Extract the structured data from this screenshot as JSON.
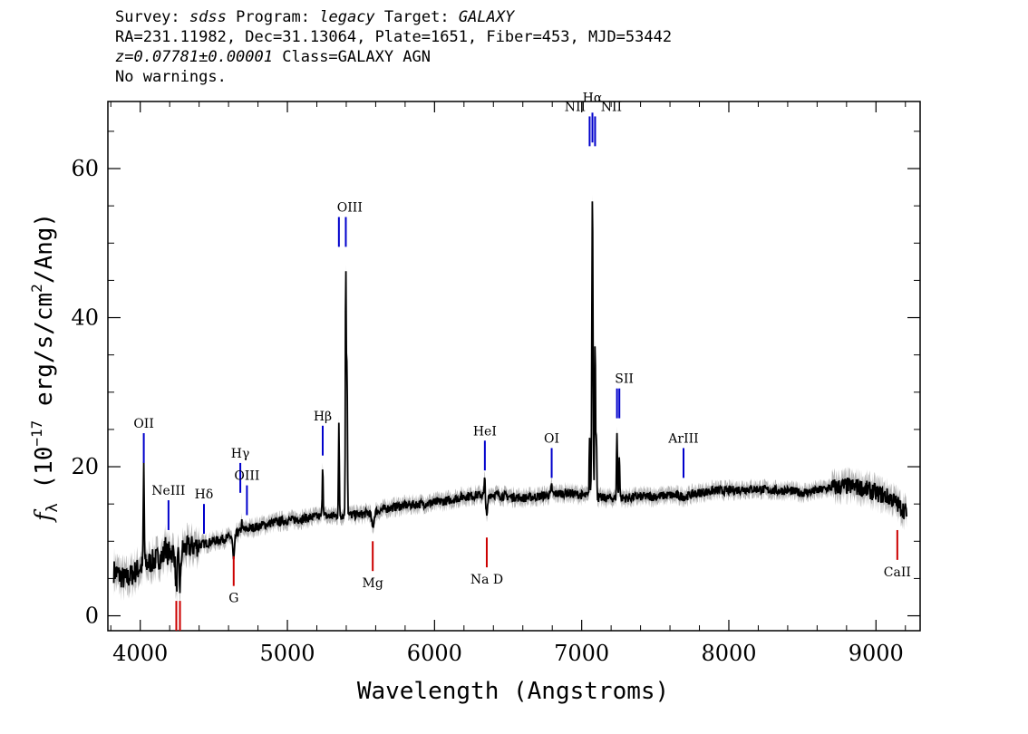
{
  "header": {
    "survey_key": "Survey:",
    "survey": "sdss",
    "program_key": "Program:",
    "program": "legacy",
    "target_key": "Target:",
    "target": "GALAXY",
    "coords": "RA=231.11982, Dec=31.13064, Plate=1651, Fiber=453, MJD=53442",
    "redshift": "z=0.07781±0.00001",
    "class": "Class=GALAXY AGN",
    "warnings": "No warnings."
  },
  "chart_data": {
    "type": "line",
    "title": "",
    "xlabel": "Wavelength (Angstroms)",
    "ylabel": "f_λ (10^-17 erg/s/cm^2/Ang)",
    "ylabel_parts": {
      "f": "f",
      "sub": "λ",
      "a": " (10",
      "exp1": "−17",
      "b": " erg/s/cm",
      "exp2": "2",
      "c": "/Ang)"
    },
    "xlim": [
      3780,
      9300
    ],
    "ylim": [
      -2,
      69
    ],
    "xticks": [
      4000,
      5000,
      6000,
      7000,
      8000,
      9000
    ],
    "xtick_labels": [
      "4000",
      "5000",
      "6000",
      "7000",
      "8000",
      "9000"
    ],
    "yticks": [
      0,
      20,
      40,
      60
    ],
    "ytick_labels": [
      "0",
      "20",
      "40",
      "60"
    ],
    "series": [
      {
        "name": "flux",
        "color": "#000000",
        "continuum": [
          [
            3820,
            6
          ],
          [
            3900,
            4.8
          ],
          [
            4000,
            6.5
          ],
          [
            4100,
            7.5
          ],
          [
            4200,
            8.5
          ],
          [
            4300,
            9
          ],
          [
            4400,
            9.5
          ],
          [
            4500,
            10
          ],
          [
            4600,
            10.5
          ],
          [
            4700,
            11.5
          ],
          [
            4800,
            12
          ],
          [
            4900,
            12.5
          ],
          [
            5000,
            12.8
          ],
          [
            5100,
            13
          ],
          [
            5200,
            13.3
          ],
          [
            5300,
            13.4
          ],
          [
            5400,
            13.5
          ],
          [
            5500,
            13.6
          ],
          [
            5600,
            14
          ],
          [
            5700,
            14.5
          ],
          [
            5800,
            14.8
          ],
          [
            5900,
            15
          ],
          [
            6000,
            15.2
          ],
          [
            6100,
            15.5
          ],
          [
            6200,
            16
          ],
          [
            6300,
            16.2
          ],
          [
            6400,
            16.3
          ],
          [
            6500,
            16
          ],
          [
            6600,
            15.8
          ],
          [
            6700,
            16
          ],
          [
            6800,
            16.3
          ],
          [
            6900,
            16.5
          ],
          [
            7000,
            16.2
          ],
          [
            7100,
            15.8
          ],
          [
            7200,
            15.8
          ],
          [
            7300,
            15.8
          ],
          [
            7400,
            16
          ],
          [
            7500,
            16
          ],
          [
            7600,
            16.2
          ],
          [
            7700,
            16
          ],
          [
            7800,
            16.5
          ],
          [
            7900,
            16.8
          ],
          [
            8000,
            16.8
          ],
          [
            8100,
            17
          ],
          [
            8200,
            17
          ],
          [
            8300,
            16.8
          ],
          [
            8400,
            16.8
          ],
          [
            8500,
            16.5
          ],
          [
            8600,
            16.8
          ],
          [
            8700,
            17.2
          ],
          [
            8800,
            17.4
          ],
          [
            8900,
            17.2
          ],
          [
            9000,
            16.5
          ],
          [
            9100,
            15.8
          ],
          [
            9200,
            14
          ]
        ],
        "features": [
          {
            "center": 4024,
            "amp": 13.5,
            "width": 3
          },
          {
            "center": 4170,
            "amp": 2.5,
            "width": 3
          },
          {
            "center": 4245,
            "amp": -5,
            "width": 6
          },
          {
            "center": 4270,
            "amp": -5,
            "width": 6
          },
          {
            "center": 4635,
            "amp": -3.5,
            "width": 6
          },
          {
            "center": 4690,
            "amp": 1.2,
            "width": 3
          },
          {
            "center": 5240,
            "amp": 7,
            "width": 3
          },
          {
            "center": 5350,
            "amp": 12,
            "width": 3
          },
          {
            "center": 5397,
            "amp": 33.5,
            "width": 3
          },
          {
            "center": 5405,
            "amp": 20,
            "width": 3
          },
          {
            "center": 5580,
            "amp": -2,
            "width": 8
          },
          {
            "center": 6342,
            "amp": 2.5,
            "width": 3
          },
          {
            "center": 6355,
            "amp": -3,
            "width": 6
          },
          {
            "center": 6796,
            "amp": 1.2,
            "width": 3
          },
          {
            "center": 7054,
            "amp": 8,
            "width": 3
          },
          {
            "center": 7073,
            "amp": 41,
            "width": 4
          },
          {
            "center": 7091,
            "amp": 22,
            "width": 3
          },
          {
            "center": 7100,
            "amp": 8,
            "width": 3
          },
          {
            "center": 7240,
            "amp": 9,
            "width": 3
          },
          {
            "center": 7256,
            "amp": 6,
            "width": 3
          }
        ]
      }
    ],
    "emission_lines": [
      {
        "label": "OII",
        "x": 4024,
        "y1": 20.5,
        "y2": 24.5
      },
      {
        "label": "NeIII",
        "x": 4192,
        "y1": 11.5,
        "y2": 15.5
      },
      {
        "label": "Hδ",
        "x": 4433,
        "y1": 11,
        "y2": 15
      },
      {
        "label": "Hγ",
        "x": 4680,
        "y1": 16.5,
        "y2": 20.5
      },
      {
        "label": "OIII",
        "x": 4725,
        "y1": 13.5,
        "y2": 17.5
      },
      {
        "label": "Hβ",
        "x": 5240,
        "y1": 21.5,
        "y2": 25.5
      },
      {
        "label": "OIII",
        "x": 5350,
        "y1": 49.5,
        "y2": 53.5
      },
      {
        "label": "OIII",
        "x": 5397,
        "y1": 49.5,
        "y2": 53.5
      },
      {
        "label": "HeI",
        "x": 6342,
        "y1": 19.5,
        "y2": 23.5
      },
      {
        "label": "OI",
        "x": 6796,
        "y1": 18.5,
        "y2": 22.5
      },
      {
        "label": "NII",
        "x": 7054,
        "y1": 63,
        "y2": 67
      },
      {
        "label": "Hα",
        "x": 7073,
        "y1": 63.5,
        "y2": 67.5
      },
      {
        "label": "NII",
        "x": 7091,
        "y1": 63,
        "y2": 67
      },
      {
        "label": "SII",
        "x": 7240,
        "y1": 26.5,
        "y2": 30.5
      },
      {
        "label": "SII",
        "x": 7256,
        "y1": 26.5,
        "y2": 30.5
      },
      {
        "label": "ArIII",
        "x": 7692,
        "y1": 18.5,
        "y2": 22.5
      }
    ],
    "absorption_lines": [
      {
        "label": "",
        "x": 4245,
        "y1": -2,
        "y2": 2
      },
      {
        "label": "",
        "x": 4270,
        "y1": -2,
        "y2": 2
      },
      {
        "label": "G",
        "x": 4635,
        "y1": 4,
        "y2": 8
      },
      {
        "label": "Mg",
        "x": 5580,
        "y1": 6,
        "y2": 10
      },
      {
        "label": "Na D",
        "x": 6355,
        "y1": 6.5,
        "y2": 10.5
      },
      {
        "label": "CaII",
        "x": 9145,
        "y1": 7.5,
        "y2": 11.5
      }
    ],
    "colors": {
      "spectrum": "#000000",
      "error": "#b4b4b4",
      "emission": "#0000cc",
      "absorption": "#cc0000"
    }
  }
}
